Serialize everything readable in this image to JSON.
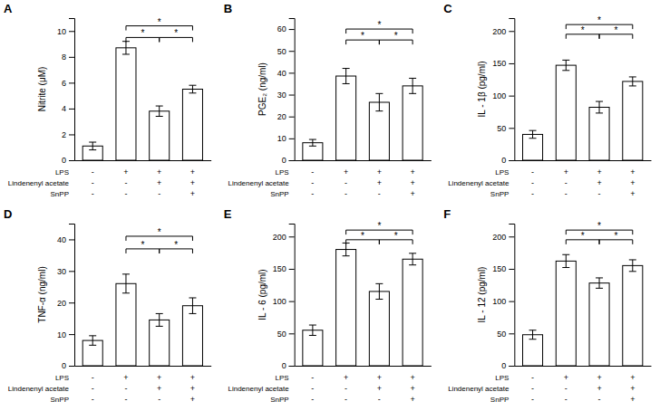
{
  "chart_data": [
    {
      "type": "bar",
      "title": "A",
      "ylabel": "Nitrite (μM)",
      "categories": [
        null,
        null,
        null,
        null
      ],
      "values": [
        1.1,
        8.7,
        3.8,
        5.5
      ],
      "errors": [
        0.3,
        0.5,
        0.4,
        0.3
      ],
      "color": "#ffffff",
      "ylim": [
        0,
        11
      ],
      "yticks": [
        0,
        2,
        4,
        6,
        8,
        10
      ],
      "grid": false,
      "tick_labels": "y",
      "x_label_rows": [
        {
          "name": "LPS",
          "labels": [
            "-",
            "+",
            "+",
            "+"
          ]
        },
        {
          "name": "Lindenenyl acetate",
          "labels": [
            "-",
            "-",
            "+",
            "+"
          ]
        },
        {
          "name": "SnPP",
          "labels": [
            "-",
            "-",
            "-",
            "+"
          ]
        }
      ],
      "annotations": [
        {
          "from": 1,
          "to": 2,
          "y": 9.5,
          "text": "*"
        },
        {
          "from": 2,
          "to": 3,
          "y": 9.5,
          "text": "*"
        },
        {
          "from": 1,
          "to": 3,
          "y": 10.4,
          "text": "*"
        }
      ]
    },
    {
      "type": "bar",
      "title": "B",
      "ylabel": "PGE₂ (ng/ml)",
      "categories": [
        null,
        null,
        null,
        null
      ],
      "values": [
        8.0,
        38.5,
        26.5,
        34.0
      ],
      "errors": [
        1.5,
        3.5,
        4.0,
        3.5
      ],
      "color": "#ffffff",
      "ylim": [
        0,
        65
      ],
      "yticks": [
        0,
        10,
        20,
        30,
        40,
        50,
        60
      ],
      "grid": false,
      "tick_labels": "y",
      "x_label_rows": [
        {
          "name": "LPS",
          "labels": [
            "-",
            "+",
            "+",
            "+"
          ]
        },
        {
          "name": "Lindenenyl acetate",
          "labels": [
            "-",
            "-",
            "+",
            "+"
          ]
        },
        {
          "name": "SnPP",
          "labels": [
            "-",
            "-",
            "-",
            "+"
          ]
        }
      ],
      "annotations": [
        {
          "from": 1,
          "to": 2,
          "y": 55,
          "text": "*"
        },
        {
          "from": 2,
          "to": 3,
          "y": 55,
          "text": "*"
        },
        {
          "from": 1,
          "to": 3,
          "y": 60,
          "text": "*"
        }
      ]
    },
    {
      "type": "bar",
      "title": "C",
      "ylabel": "IL - 1β (pg/ml)",
      "categories": [
        null,
        null,
        null,
        null
      ],
      "values": [
        40.0,
        147.0,
        82.0,
        122.0
      ],
      "errors": [
        6.0,
        8.0,
        9.0,
        7.0
      ],
      "color": "#ffffff",
      "ylim": [
        0,
        220
      ],
      "yticks": [
        0,
        50,
        100,
        150,
        200
      ],
      "grid": false,
      "tick_labels": "y",
      "x_label_rows": [
        {
          "name": "LPS",
          "labels": [
            "-",
            "+",
            "+",
            "+"
          ]
        },
        {
          "name": "Lindenenyl acetate",
          "labels": [
            "-",
            "-",
            "+",
            "+"
          ]
        },
        {
          "name": "SnPP",
          "labels": [
            "-",
            "-",
            "-",
            "+"
          ]
        }
      ],
      "annotations": [
        {
          "from": 1,
          "to": 2,
          "y": 195,
          "text": "*"
        },
        {
          "from": 2,
          "to": 3,
          "y": 195,
          "text": "*"
        },
        {
          "from": 1,
          "to": 3,
          "y": 210,
          "text": "*"
        }
      ]
    },
    {
      "type": "bar",
      "title": "D",
      "ylabel": "TNF-α (ng/ml)",
      "categories": [
        null,
        null,
        null,
        null
      ],
      "values": [
        8.0,
        26.0,
        14.5,
        19.0
      ],
      "errors": [
        1.5,
        3.0,
        2.0,
        2.5
      ],
      "color": "#ffffff",
      "ylim": [
        0,
        45
      ],
      "yticks": [
        0,
        10,
        20,
        30,
        40
      ],
      "grid": false,
      "tick_labels": "y",
      "x_label_rows": [
        {
          "name": "LPS",
          "labels": [
            "-",
            "+",
            "+",
            "+"
          ]
        },
        {
          "name": "Lindenenyl acetate",
          "labels": [
            "-",
            "-",
            "+",
            "+"
          ]
        },
        {
          "name": "SnPP",
          "labels": [
            "-",
            "-",
            "-",
            "+"
          ]
        }
      ],
      "annotations": [
        {
          "from": 1,
          "to": 2,
          "y": 37,
          "text": "*"
        },
        {
          "from": 2,
          "to": 3,
          "y": 37,
          "text": "*"
        },
        {
          "from": 1,
          "to": 3,
          "y": 41,
          "text": "*"
        }
      ]
    },
    {
      "type": "bar",
      "title": "E",
      "ylabel": "IL - 6 (pg/ml)",
      "categories": [
        null,
        null,
        null,
        null
      ],
      "values": [
        55.0,
        180.0,
        115.0,
        165.0
      ],
      "errors": [
        8.0,
        10.0,
        12.0,
        9.0
      ],
      "color": "#ffffff",
      "ylim": [
        0,
        220
      ],
      "yticks": [
        0,
        50,
        100,
        150,
        200
      ],
      "grid": false,
      "tick_labels": "y",
      "x_label_rows": [
        {
          "name": "LPS",
          "labels": [
            "-",
            "+",
            "+",
            "+"
          ]
        },
        {
          "name": "Lindenenyl acetate",
          "labels": [
            "-",
            "-",
            "+",
            "+"
          ]
        },
        {
          "name": "SnPP",
          "labels": [
            "-",
            "-",
            "-",
            "+"
          ]
        }
      ],
      "annotations": [
        {
          "from": 1,
          "to": 2,
          "y": 195,
          "text": "*"
        },
        {
          "from": 2,
          "to": 3,
          "y": 195,
          "text": "*"
        },
        {
          "from": 1,
          "to": 3,
          "y": 210,
          "text": "*"
        }
      ]
    },
    {
      "type": "bar",
      "title": "F",
      "ylabel": "IL - 12 (pg/ml)",
      "categories": [
        null,
        null,
        null,
        null
      ],
      "values": [
        48.0,
        162.0,
        128.0,
        155.0
      ],
      "errors": [
        7.0,
        10.0,
        8.0,
        9.0
      ],
      "color": "#ffffff",
      "ylim": [
        0,
        220
      ],
      "yticks": [
        0,
        50,
        100,
        150,
        200
      ],
      "grid": false,
      "tick_labels": "y",
      "x_label_rows": [
        {
          "name": "LPS",
          "labels": [
            "-",
            "+",
            "+",
            "+"
          ]
        },
        {
          "name": "Lindenenyl acetate",
          "labels": [
            "-",
            "-",
            "+",
            "+"
          ]
        },
        {
          "name": "SnPP",
          "labels": [
            "-",
            "-",
            "-",
            "+"
          ]
        }
      ],
      "annotations": [
        {
          "from": 1,
          "to": 2,
          "y": 195,
          "text": "*"
        },
        {
          "from": 2,
          "to": 3,
          "y": 195,
          "text": "*"
        },
        {
          "from": 1,
          "to": 3,
          "y": 210,
          "text": "*"
        }
      ]
    }
  ]
}
